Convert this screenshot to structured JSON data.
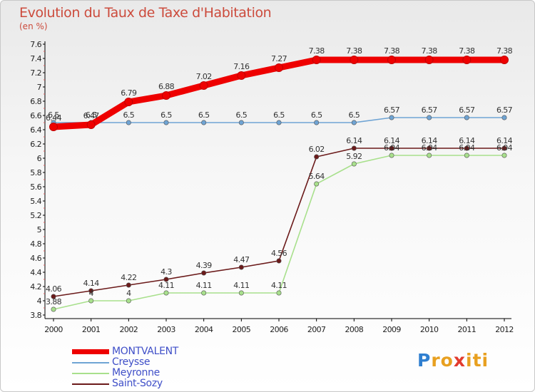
{
  "chart_data": {
    "type": "line",
    "title": "Evolution du Taux de Taxe d'Habitation",
    "ylabel": "(en %)",
    "xlabel": "",
    "x": [
      "2000",
      "2001",
      "2002",
      "2003",
      "2004",
      "2005",
      "2006",
      "2007",
      "2008",
      "2009",
      "2010",
      "2011",
      "2012"
    ],
    "ylim": [
      3.8,
      7.6
    ],
    "yticks": [
      "3.8",
      "4",
      "4.2",
      "4.4",
      "4.6",
      "4.8",
      "5",
      "5.2",
      "5.4",
      "5.6",
      "5.8",
      "6",
      "6.2",
      "6.4",
      "6.6",
      "6.8",
      "7",
      "7.2",
      "7.4",
      "7.6"
    ],
    "grid": false,
    "legend_position": "bottom-left",
    "series": [
      {
        "name": "MONTVALENT",
        "color": "#ee0000",
        "values": [
          6.44,
          6.47,
          6.79,
          6.88,
          7.02,
          7.16,
          7.27,
          7.38,
          7.38,
          7.38,
          7.38,
          7.38,
          7.38
        ],
        "labels": [
          "6.44",
          "6.47",
          "6.79",
          "6.88",
          "7.02",
          "7.16",
          "7.27",
          "7.38",
          "7.38",
          "7.38",
          "7.38",
          "7.38",
          "7.38"
        ]
      },
      {
        "name": "Creysse",
        "color": "#6fa4d4",
        "values": [
          6.5,
          6.5,
          6.5,
          6.5,
          6.5,
          6.5,
          6.5,
          6.5,
          6.5,
          6.57,
          6.57,
          6.57,
          6.57
        ],
        "labels": [
          "6.5",
          "6.5",
          "6.5",
          "6.5",
          "6.5",
          "6.5",
          "6.5",
          "6.5",
          "6.5",
          "6.57",
          "6.57",
          "6.57",
          "6.57"
        ]
      },
      {
        "name": "Meyronne",
        "color": "#a8e08c",
        "values": [
          3.88,
          4,
          4,
          4.11,
          4.11,
          4.11,
          4.11,
          5.64,
          5.92,
          6.04,
          6.04,
          6.04,
          6.04
        ],
        "labels": [
          "3.88",
          "4",
          "4",
          "4.11",
          "4.11",
          "4.11",
          "4.11",
          "5.64",
          "5.92",
          "6.04",
          "6.04",
          "6.04",
          "6.04"
        ]
      },
      {
        "name": "Saint-Sozy",
        "color": "#6b1a1a",
        "values": [
          4.06,
          4.14,
          4.22,
          4.3,
          4.39,
          4.47,
          4.56,
          6.02,
          6.14,
          6.14,
          6.14,
          6.14,
          6.14
        ],
        "labels": [
          "4.06",
          "4.14",
          "4.22",
          "4.3",
          "4.39",
          "4.47",
          "4.56",
          "6.02",
          "6.14",
          "6.14",
          "6.14",
          "6.14",
          "6.14"
        ]
      }
    ]
  },
  "legend": {
    "items": [
      {
        "label": "MONTVALENT",
        "color": "#ee0000"
      },
      {
        "label": "Creysse",
        "color": "#6fa4d4"
      },
      {
        "label": "Meyronne",
        "color": "#a8e08c"
      },
      {
        "label": "Saint-Sozy",
        "color": "#6b1a1a"
      }
    ]
  },
  "brand": {
    "letters": [
      "P",
      "r",
      "o",
      "x",
      "i",
      "t",
      "i"
    ],
    "colors": [
      "#2f7fd0",
      "#e8a020",
      "#e8a020",
      "#e23b2e",
      "#e8a020",
      "#e8a020",
      "#e8a020"
    ]
  }
}
